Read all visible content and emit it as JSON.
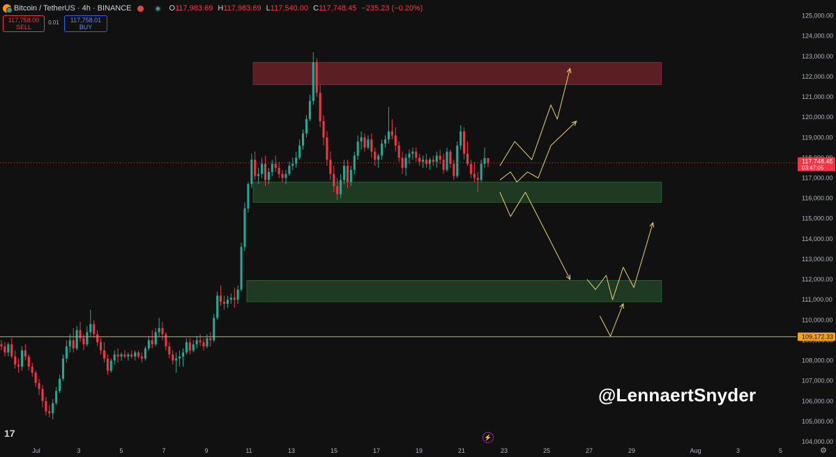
{
  "header": {
    "symbol": "Bitcoin / TetherUS · 4h · BINANCE",
    "open_label": "O",
    "open": "117,983.69",
    "high_label": "H",
    "high": "117,983.69",
    "low_label": "L",
    "low": "117,540.00",
    "close_label": "C",
    "close": "117,748.45",
    "change": "−235.23 (−0.20%)"
  },
  "trade": {
    "sell_price": "117,758.00",
    "sell_label": "SELL",
    "spread": "0.01",
    "buy_price": "117,758.01",
    "buy_label": "BUY"
  },
  "watermark": "@LennaertSnyder",
  "logo": "17",
  "colors": {
    "up": "#22ab94",
    "down": "#f23645",
    "supply_zone": "#5a1f23",
    "demand_zone": "#1e3a22",
    "projection": "#e8d46a",
    "level_line": "#f7a21b"
  },
  "chart_data": {
    "type": "candlestick",
    "ylim": [
      104000,
      125500
    ],
    "y_ticks": [
      104000,
      105000,
      106000,
      107000,
      108000,
      109000,
      110000,
      111000,
      112000,
      113000,
      114000,
      115000,
      116000,
      117000,
      118000,
      119000,
      120000,
      121000,
      122000,
      123000,
      124000,
      125000
    ],
    "y_tick_labels": [
      "104,000.00",
      "105,000.00",
      "106,000.00",
      "107,000.00",
      "108,000.00",
      "109,000.00",
      "110,000.00",
      "111,000.00",
      "112,000.00",
      "113,000.00",
      "114,000.00",
      "115,000.00",
      "116,000.00",
      "117,000.00",
      "118,000.00",
      "119,000.00",
      "120,000.00",
      "121,000.00",
      "122,000.00",
      "123,000.00",
      "124,000.00",
      "125,000.00"
    ],
    "x_ticks": [
      {
        "label": "Jul",
        "day": 1
      },
      {
        "label": "3",
        "day": 3
      },
      {
        "label": "5",
        "day": 5
      },
      {
        "label": "7",
        "day": 7
      },
      {
        "label": "9",
        "day": 9
      },
      {
        "label": "11",
        "day": 11
      },
      {
        "label": "13",
        "day": 13
      },
      {
        "label": "15",
        "day": 15
      },
      {
        "label": "17",
        "day": 17
      },
      {
        "label": "19",
        "day": 19
      },
      {
        "label": "21",
        "day": 21
      },
      {
        "label": "23",
        "day": 23
      },
      {
        "label": "25",
        "day": 25
      },
      {
        "label": "27",
        "day": 27
      },
      {
        "label": "29",
        "day": 29
      },
      {
        "label": "Aug",
        "day": 32
      },
      {
        "label": "3",
        "day": 34
      },
      {
        "label": "5",
        "day": 36
      }
    ],
    "current_price": "117,748.45",
    "current_price_value": 117748.45,
    "countdown": "03:47:05",
    "level_price": "109,172.33",
    "level_value": 109172.33,
    "zones": [
      {
        "name": "supply",
        "from_day": 11.2,
        "to_day": 30.4,
        "low": 121600,
        "high": 122700
      },
      {
        "name": "demand-upper",
        "from_day": 11.2,
        "to_day": 30.4,
        "low": 115800,
        "high": 116800
      },
      {
        "name": "demand-lower",
        "from_day": 10.9,
        "to_day": 30.4,
        "low": 110900,
        "high": 111950
      }
    ],
    "projections": [
      {
        "points": [
          [
            22.8,
            117600
          ],
          [
            23.5,
            118800
          ],
          [
            24.3,
            117900
          ],
          [
            25.2,
            120600
          ],
          [
            25.5,
            119900
          ],
          [
            26.1,
            122400
          ]
        ]
      },
      {
        "points": [
          [
            22.8,
            116900
          ],
          [
            23.3,
            117300
          ],
          [
            23.6,
            116800
          ],
          [
            24.1,
            117300
          ],
          [
            24.6,
            117000
          ],
          [
            25.2,
            118600
          ],
          [
            26.4,
            119800
          ]
        ]
      },
      {
        "points": [
          [
            22.8,
            116300
          ],
          [
            23.3,
            115100
          ],
          [
            24.0,
            116300
          ],
          [
            26.1,
            112000
          ]
        ]
      },
      {
        "points": [
          [
            26.9,
            112000
          ],
          [
            27.3,
            111500
          ],
          [
            27.8,
            112200
          ],
          [
            28.1,
            111000
          ],
          [
            28.6,
            112600
          ],
          [
            29.1,
            111600
          ],
          [
            30.0,
            114800
          ]
        ]
      },
      {
        "points": [
          [
            27.5,
            110200
          ],
          [
            28.0,
            109200
          ],
          [
            28.6,
            110800
          ]
        ]
      }
    ],
    "candles": [
      [
        108800,
        109000,
        108500,
        108700
      ],
      [
        108700,
        108900,
        108200,
        108400
      ],
      [
        108400,
        108900,
        108200,
        108800
      ],
      [
        108800,
        109100,
        108100,
        108200
      ],
      [
        108200,
        108500,
        107600,
        107800
      ],
      [
        107800,
        108100,
        107400,
        107700
      ],
      [
        107700,
        108700,
        107500,
        108500
      ],
      [
        108500,
        108800,
        108000,
        108200
      ],
      [
        108200,
        108300,
        107500,
        107700
      ],
      [
        107700,
        107900,
        107200,
        107400
      ],
      [
        107400,
        107500,
        106700,
        106900
      ],
      [
        106900,
        107100,
        106300,
        106600
      ],
      [
        106600,
        106800,
        105700,
        106000
      ],
      [
        106000,
        106200,
        105300,
        105500
      ],
      [
        105500,
        105800,
        105200,
        105400
      ],
      [
        105400,
        106100,
        105100,
        105900
      ],
      [
        105900,
        106700,
        105800,
        106500
      ],
      [
        106500,
        107300,
        106400,
        107100
      ],
      [
        107100,
        108300,
        107000,
        108100
      ],
      [
        108100,
        109000,
        107900,
        108700
      ],
      [
        108700,
        109300,
        108400,
        109000
      ],
      [
        109000,
        109600,
        108400,
        108600
      ],
      [
        108600,
        109700,
        108500,
        109500
      ],
      [
        109500,
        109900,
        108900,
        109100
      ],
      [
        109100,
        109300,
        108500,
        108800
      ],
      [
        108800,
        109700,
        108700,
        109400
      ],
      [
        109400,
        110500,
        109200,
        109800
      ],
      [
        109800,
        110000,
        109100,
        109300
      ],
      [
        109300,
        109500,
        108700,
        108900
      ],
      [
        108900,
        109100,
        108300,
        108500
      ],
      [
        108500,
        108900,
        107900,
        108100
      ],
      [
        108100,
        108300,
        107300,
        107500
      ],
      [
        107500,
        108100,
        107400,
        108000
      ],
      [
        108000,
        108500,
        107800,
        108300
      ],
      [
        108300,
        108600,
        107900,
        108200
      ],
      [
        108200,
        108400,
        108000,
        108300
      ],
      [
        108300,
        108500,
        108100,
        108200
      ],
      [
        108200,
        108400,
        108000,
        108300
      ],
      [
        108300,
        108500,
        108100,
        108200
      ],
      [
        108200,
        108500,
        108000,
        108400
      ],
      [
        108400,
        108500,
        108100,
        108200
      ],
      [
        108200,
        108400,
        107900,
        108100
      ],
      [
        108100,
        108700,
        108000,
        108600
      ],
      [
        108600,
        109200,
        108500,
        109000
      ],
      [
        109000,
        109500,
        108600,
        108800
      ],
      [
        108800,
        109600,
        108700,
        109400
      ],
      [
        109400,
        110100,
        109200,
        109600
      ],
      [
        109600,
        109900,
        109000,
        109300
      ],
      [
        109300,
        109400,
        108500,
        108700
      ],
      [
        108700,
        108900,
        108100,
        108300
      ],
      [
        108300,
        108500,
        107800,
        108000
      ],
      [
        108000,
        108400,
        107400,
        108100
      ],
      [
        108100,
        108500,
        107700,
        108200
      ],
      [
        108200,
        108600,
        107700,
        108400
      ],
      [
        108400,
        109100,
        108300,
        108900
      ],
      [
        108900,
        109100,
        108300,
        108500
      ],
      [
        108500,
        109000,
        108400,
        108800
      ],
      [
        108800,
        109200,
        108600,
        109000
      ],
      [
        109000,
        109300,
        108700,
        108900
      ],
      [
        108900,
        109100,
        108500,
        108700
      ],
      [
        108700,
        109300,
        108600,
        109100
      ],
      [
        109100,
        109400,
        108700,
        109000
      ],
      [
        109000,
        110300,
        108900,
        110100
      ],
      [
        110100,
        111400,
        110000,
        111200
      ],
      [
        111200,
        111700,
        110700,
        110900
      ],
      [
        110900,
        111200,
        110500,
        110800
      ],
      [
        110800,
        111200,
        110600,
        111000
      ],
      [
        111000,
        111300,
        110800,
        111100
      ],
      [
        111100,
        111600,
        110600,
        111000
      ],
      [
        111000,
        111700,
        110800,
        111500
      ],
      [
        111500,
        113800,
        111400,
        113600
      ],
      [
        113600,
        115800,
        113400,
        115500
      ],
      [
        115500,
        116800,
        115300,
        116700
      ],
      [
        116700,
        118200,
        116500,
        117900
      ],
      [
        117900,
        118300,
        116900,
        117100
      ],
      [
        117100,
        117500,
        116700,
        117200
      ],
      [
        117200,
        118000,
        117000,
        117700
      ],
      [
        117700,
        118100,
        116600,
        116900
      ],
      [
        116900,
        117500,
        116700,
        117300
      ],
      [
        117300,
        117900,
        117100,
        117700
      ],
      [
        117700,
        118100,
        117300,
        117500
      ],
      [
        117500,
        117800,
        117000,
        117200
      ],
      [
        117200,
        117400,
        116800,
        117000
      ],
      [
        117000,
        117400,
        116700,
        117200
      ],
      [
        117200,
        117800,
        117100,
        117600
      ],
      [
        117600,
        118000,
        117400,
        117700
      ],
      [
        117700,
        118300,
        117500,
        118000
      ],
      [
        118000,
        118900,
        117900,
        118600
      ],
      [
        118600,
        119400,
        118400,
        119200
      ],
      [
        119200,
        120100,
        119000,
        119900
      ],
      [
        119900,
        121100,
        119800,
        120800
      ],
      [
        120800,
        123200,
        120600,
        122700
      ],
      [
        122700,
        122900,
        121000,
        121200
      ],
      [
        121200,
        121600,
        119500,
        119800
      ],
      [
        119800,
        120100,
        118600,
        119000
      ],
      [
        119000,
        119300,
        117600,
        117900
      ],
      [
        117900,
        118300,
        116900,
        117200
      ],
      [
        117200,
        117600,
        116300,
        116600
      ],
      [
        116600,
        117000,
        115900,
        116200
      ],
      [
        116200,
        117200,
        116000,
        116900
      ],
      [
        116900,
        117900,
        116700,
        117600
      ],
      [
        117600,
        117900,
        116500,
        116800
      ],
      [
        116800,
        117600,
        116600,
        117400
      ],
      [
        117400,
        118300,
        117200,
        118100
      ],
      [
        118100,
        119100,
        117900,
        118800
      ],
      [
        118800,
        119300,
        118400,
        119000
      ],
      [
        119000,
        119200,
        118300,
        118500
      ],
      [
        118500,
        119100,
        118400,
        118900
      ],
      [
        118900,
        119200,
        118000,
        118300
      ],
      [
        118300,
        118500,
        117600,
        117900
      ],
      [
        117900,
        118200,
        117500,
        118100
      ],
      [
        118100,
        118900,
        117900,
        118700
      ],
      [
        118700,
        119100,
        118500,
        118900
      ],
      [
        118900,
        120500,
        118700,
        119300
      ],
      [
        119300,
        119900,
        118900,
        119100
      ],
      [
        119100,
        119500,
        118300,
        118600
      ],
      [
        118600,
        118800,
        117800,
        118000
      ],
      [
        118000,
        118300,
        117200,
        117500
      ],
      [
        117500,
        118200,
        117100,
        118000
      ],
      [
        118000,
        118400,
        117700,
        118200
      ],
      [
        118200,
        118500,
        117900,
        118300
      ],
      [
        118300,
        118500,
        117800,
        118000
      ],
      [
        118000,
        118200,
        117600,
        117800
      ],
      [
        117800,
        118100,
        117500,
        117900
      ],
      [
        117900,
        118200,
        117500,
        117700
      ],
      [
        117700,
        118000,
        117400,
        117900
      ],
      [
        117900,
        118100,
        117600,
        117800
      ],
      [
        117800,
        118300,
        117500,
        118100
      ],
      [
        118100,
        118400,
        117700,
        117900
      ],
      [
        117900,
        118200,
        117200,
        117400
      ],
      [
        117400,
        118500,
        117300,
        118300
      ],
      [
        118300,
        118400,
        117500,
        117700
      ],
      [
        117700,
        117900,
        116900,
        117100
      ],
      [
        117100,
        118800,
        117000,
        118600
      ],
      [
        118600,
        119600,
        118400,
        119300
      ],
      [
        119300,
        119500,
        117900,
        118200
      ],
      [
        118200,
        118800,
        117600,
        117700
      ],
      [
        117700,
        117900,
        117000,
        117200
      ],
      [
        117200,
        117800,
        116800,
        117000
      ],
      [
        117000,
        117300,
        116300,
        116900
      ],
      [
        116900,
        117900,
        116800,
        117700
      ],
      [
        117700,
        118500,
        117500,
        117983.69
      ],
      [
        117983.69,
        117983.69,
        117540,
        117748.45
      ]
    ]
  }
}
